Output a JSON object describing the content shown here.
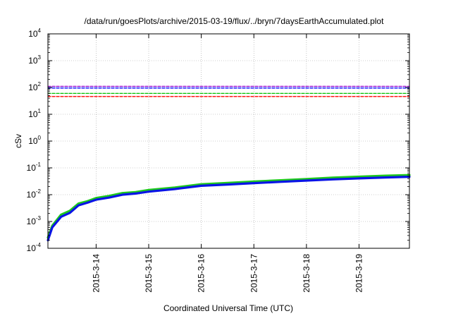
{
  "chart_data": {
    "type": "line",
    "title": "/data/run/goesPlots/archive/2015-03-19/flux/../bryn/7daysEarthAccumulated.plot",
    "xlabel": "Coordinated Universal Time (UTC)",
    "ylabel": "cSv",
    "x_axis": {
      "type": "date",
      "range": [
        "2015-03-13 02:00",
        "2015-03-19 23:00"
      ],
      "tick_values": [
        "2015-03-14",
        "2015-03-15",
        "2015-03-16",
        "2015-03-17",
        "2015-03-18",
        "2015-03-19"
      ],
      "tick_labels": [
        "2015-3-14",
        "2015-3-15",
        "2015-3-16",
        "2015-3-17",
        "2015-3-18",
        "2015-3-19"
      ]
    },
    "y_axis": {
      "scale": "log",
      "range": [
        0.0001,
        10000
      ],
      "tick_values": [
        0.0001,
        0.001,
        0.01,
        0.1,
        1,
        10,
        100,
        1000,
        10000
      ],
      "tick_labels": [
        {
          "base": "10",
          "exp": "-4"
        },
        {
          "base": "10",
          "exp": "-3"
        },
        {
          "base": "10",
          "exp": "-2"
        },
        {
          "base": "10",
          "exp": "-1"
        },
        {
          "base": "10",
          "exp": "0"
        },
        {
          "base": "10",
          "exp": "1"
        },
        {
          "base": "10",
          "exp": "2"
        },
        {
          "base": "10",
          "exp": "3"
        },
        {
          "base": "10",
          "exp": "4"
        }
      ]
    },
    "grid": true,
    "legend": "none",
    "series": [
      {
        "style": "dashed",
        "color": "#9400d3",
        "points": [
          [
            "2015-03-13 02:00",
            110
          ],
          [
            "2015-03-19 23:00",
            110
          ]
        ]
      },
      {
        "style": "dashed",
        "color": "#0000ff",
        "points": [
          [
            "2015-03-13 02:00",
            95
          ],
          [
            "2015-03-19 23:00",
            95
          ]
        ]
      },
      {
        "style": "dashed",
        "color": "#00c000",
        "points": [
          [
            "2015-03-13 02:00",
            60
          ],
          [
            "2015-03-19 23:00",
            60
          ]
        ]
      },
      {
        "style": "dashed",
        "color": "#ff0000",
        "points": [
          [
            "2015-03-13 02:00",
            46
          ],
          [
            "2015-03-19 23:00",
            46
          ]
        ]
      },
      {
        "style": "solid",
        "color": "#1ec81e",
        "points": [
          [
            "2015-03-13 02:00",
            0.00025
          ],
          [
            "2015-03-13 04:00",
            0.0007
          ],
          [
            "2015-03-13 08:00",
            0.0018
          ],
          [
            "2015-03-13 12:00",
            0.0025
          ],
          [
            "2015-03-13 16:00",
            0.0047
          ],
          [
            "2015-03-13 20:00",
            0.0057
          ],
          [
            "2015-03-14 00:00",
            0.0075
          ],
          [
            "2015-03-14 06:00",
            0.009
          ],
          [
            "2015-03-14 12:00",
            0.0115
          ],
          [
            "2015-03-14 18:00",
            0.0125
          ],
          [
            "2015-03-15 00:00",
            0.015
          ],
          [
            "2015-03-15 12:00",
            0.0185
          ],
          [
            "2015-03-16 00:00",
            0.0245
          ],
          [
            "2015-03-16 12:00",
            0.0275
          ],
          [
            "2015-03-17 00:00",
            0.031
          ],
          [
            "2015-03-17 12:00",
            0.0345
          ],
          [
            "2015-03-18 00:00",
            0.0385
          ],
          [
            "2015-03-18 12:00",
            0.043
          ],
          [
            "2015-03-19 00:00",
            0.047
          ],
          [
            "2015-03-19 12:00",
            0.051
          ],
          [
            "2015-03-19 23:00",
            0.054
          ]
        ]
      },
      {
        "style": "solid",
        "color": "#0a14e6",
        "points": [
          [
            "2015-03-13 02:00",
            0.0002
          ],
          [
            "2015-03-13 04:00",
            0.0006
          ],
          [
            "2015-03-13 08:00",
            0.0015
          ],
          [
            "2015-03-13 12:00",
            0.0021
          ],
          [
            "2015-03-13 16:00",
            0.004
          ],
          [
            "2015-03-13 20:00",
            0.005
          ],
          [
            "2015-03-14 00:00",
            0.0065
          ],
          [
            "2015-03-14 06:00",
            0.0078
          ],
          [
            "2015-03-14 12:00",
            0.01
          ],
          [
            "2015-03-14 18:00",
            0.011
          ],
          [
            "2015-03-15 00:00",
            0.013
          ],
          [
            "2015-03-15 12:00",
            0.0162
          ],
          [
            "2015-03-16 00:00",
            0.0215
          ],
          [
            "2015-03-16 12:00",
            0.024
          ],
          [
            "2015-03-17 00:00",
            0.027
          ],
          [
            "2015-03-17 12:00",
            0.0302
          ],
          [
            "2015-03-18 00:00",
            0.0335
          ],
          [
            "2015-03-18 12:00",
            0.0372
          ],
          [
            "2015-03-19 00:00",
            0.0405
          ],
          [
            "2015-03-19 12:00",
            0.0438
          ],
          [
            "2015-03-19 23:00",
            0.0465
          ]
        ]
      }
    ]
  }
}
